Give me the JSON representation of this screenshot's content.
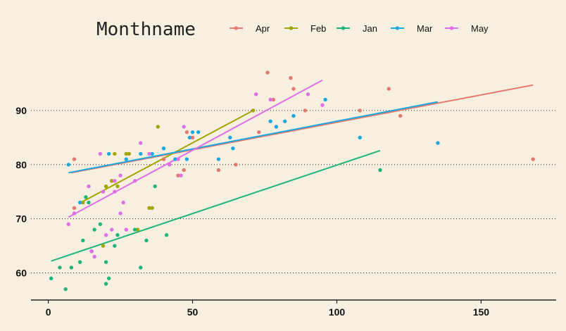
{
  "chart_data": {
    "type": "scatter",
    "legend_title": "Monthname",
    "legend_position": "top",
    "xlim": [
      -6,
      176
    ],
    "ylim": [
      55,
      100
    ],
    "x_ticks": [
      0,
      50,
      100,
      150
    ],
    "y_ticks": [
      60,
      70,
      80,
      90
    ],
    "grid": "horizontal dotted",
    "series": [
      {
        "name": "Apr",
        "color": "#e6796f",
        "points": [
          [
            9,
            81
          ],
          [
            9,
            72
          ],
          [
            40,
            81
          ],
          [
            45,
            78
          ],
          [
            47,
            79
          ],
          [
            48,
            86
          ],
          [
            50,
            85
          ],
          [
            59,
            79
          ],
          [
            65,
            80
          ],
          [
            73,
            86
          ],
          [
            76,
            97
          ],
          [
            78,
            92
          ],
          [
            84,
            96
          ],
          [
            85,
            94
          ],
          [
            89,
            90
          ],
          [
            108,
            90
          ],
          [
            118,
            94
          ],
          [
            122,
            89
          ],
          [
            168,
            81
          ]
        ],
        "trend": [
          [
            8,
            78.5
          ],
          [
            168,
            94.7
          ]
        ]
      },
      {
        "name": "Feb",
        "color": "#a3a500",
        "points": [
          [
            12,
            73
          ],
          [
            19,
            65
          ],
          [
            20,
            76
          ],
          [
            22,
            77
          ],
          [
            23,
            82
          ],
          [
            24,
            76
          ],
          [
            27,
            82
          ],
          [
            28,
            82
          ],
          [
            31,
            68
          ],
          [
            35,
            72
          ],
          [
            36,
            72
          ],
          [
            38,
            87
          ],
          [
            71,
            90
          ]
        ],
        "trend": [
          [
            12,
            73.2
          ],
          [
            71,
            90
          ]
        ]
      },
      {
        "name": "Jan",
        "color": "#1fb57a",
        "points": [
          [
            1,
            59
          ],
          [
            4,
            61
          ],
          [
            6,
            57
          ],
          [
            8,
            61
          ],
          [
            11,
            62
          ],
          [
            12,
            66
          ],
          [
            13,
            74
          ],
          [
            14,
            73
          ],
          [
            15,
            64
          ],
          [
            16,
            68
          ],
          [
            18,
            69
          ],
          [
            20,
            58
          ],
          [
            20,
            62
          ],
          [
            21,
            59
          ],
          [
            23,
            65
          ],
          [
            24,
            67
          ],
          [
            30,
            68
          ],
          [
            32,
            61
          ],
          [
            34,
            66
          ],
          [
            37,
            76
          ],
          [
            41,
            67
          ],
          [
            115,
            79
          ]
        ],
        "trend": [
          [
            1,
            62.2
          ],
          [
            115,
            82.6
          ]
        ]
      },
      {
        "name": "Mar",
        "color": "#1aa8e0",
        "points": [
          [
            7,
            80
          ],
          [
            11,
            73
          ],
          [
            15,
            64
          ],
          [
            21,
            82
          ],
          [
            27,
            81
          ],
          [
            32,
            82
          ],
          [
            36,
            82
          ],
          [
            40,
            83
          ],
          [
            44,
            81
          ],
          [
            48,
            81
          ],
          [
            49,
            85
          ],
          [
            50,
            86
          ],
          [
            52,
            86
          ],
          [
            59,
            81
          ],
          [
            63,
            85
          ],
          [
            64,
            83
          ],
          [
            77,
            88
          ],
          [
            79,
            87
          ],
          [
            82,
            88
          ],
          [
            85,
            89
          ],
          [
            96,
            92
          ],
          [
            108,
            85
          ],
          [
            135,
            84
          ]
        ],
        "trend": [
          [
            7,
            78.5
          ],
          [
            135,
            91.6
          ]
        ]
      },
      {
        "name": "May",
        "color": "#df6fe6",
        "points": [
          [
            7,
            69
          ],
          [
            9,
            71
          ],
          [
            14,
            76
          ],
          [
            15,
            64
          ],
          [
            16,
            63
          ],
          [
            18,
            82
          ],
          [
            19,
            75
          ],
          [
            20,
            67
          ],
          [
            22,
            68
          ],
          [
            23,
            75
          ],
          [
            23,
            77
          ],
          [
            25,
            78
          ],
          [
            25,
            71
          ],
          [
            26,
            73
          ],
          [
            27,
            68
          ],
          [
            30,
            77
          ],
          [
            32,
            84
          ],
          [
            35,
            82
          ],
          [
            42,
            80
          ],
          [
            45,
            81
          ],
          [
            46,
            78
          ],
          [
            47,
            87
          ],
          [
            72,
            93
          ],
          [
            77,
            92
          ],
          [
            90,
            93
          ],
          [
            95,
            91
          ]
        ],
        "trend": [
          [
            7,
            70.3
          ],
          [
            95,
            95.6
          ]
        ]
      }
    ]
  }
}
